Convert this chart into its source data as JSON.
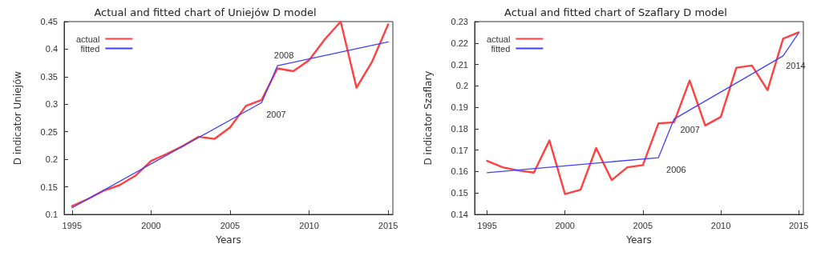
{
  "chart_data": [
    {
      "type": "line",
      "title": "Actual and fitted chart of Uniejów D model",
      "xlabel": "Years",
      "ylabel": "D indicator Uniejów",
      "xlim": [
        1994.5,
        2015.3
      ],
      "xticks": [
        1995,
        2000,
        2005,
        2010,
        2015
      ],
      "ylim": [
        0.1,
        0.45
      ],
      "yticks": [
        0.1,
        0.15,
        0.2,
        0.25,
        0.3,
        0.35,
        0.4,
        0.45
      ],
      "legend": "top left",
      "grid": false,
      "marker": "none",
      "line_style": "solid",
      "series": [
        {
          "name": "actual",
          "color": "#ff4040",
          "x": [
            1995,
            1996,
            1997,
            1998,
            1999,
            2000,
            2001,
            2002,
            2003,
            2004,
            2005,
            2006,
            2007,
            2008,
            2009,
            2010,
            2011,
            2012,
            2013,
            2014,
            2015
          ],
          "values": [
            0.115,
            0.128,
            0.143,
            0.153,
            0.17,
            0.197,
            0.21,
            0.224,
            0.241,
            0.237,
            0.258,
            0.297,
            0.308,
            0.365,
            0.36,
            0.38,
            0.418,
            0.45,
            0.33,
            0.378,
            0.445
          ]
        },
        {
          "name": "fitted",
          "color": "#4040ff",
          "x": [
            1995,
            2007,
            2008,
            2015
          ],
          "values": [
            0.112,
            0.303,
            0.37,
            0.413
          ]
        }
      ],
      "annotations": [
        {
          "text": "2007",
          "x": 2007,
          "y": 0.303
        },
        {
          "text": "2008",
          "x": 2008,
          "y": 0.37
        }
      ]
    },
    {
      "type": "line",
      "title": "Actual and fitted chart of Szaflary D model",
      "xlabel": "Years",
      "ylabel": "D indicator Szaflary",
      "xlim": [
        1994.2,
        2015.3
      ],
      "xticks": [
        1995,
        2000,
        2005,
        2010,
        2015
      ],
      "ylim": [
        0.14,
        0.23
      ],
      "yticks": [
        0.14,
        0.15,
        0.16,
        0.17,
        0.18,
        0.19,
        0.2,
        0.21,
        0.22,
        0.23
      ],
      "legend": "top left",
      "grid": false,
      "marker": "none",
      "line_style": "solid",
      "series": [
        {
          "name": "actual",
          "color": "#ff4040",
          "x": [
            1995,
            1996,
            1997,
            1998,
            1999,
            2000,
            2001,
            2002,
            2003,
            2004,
            2005,
            2006,
            2007,
            2008,
            2009,
            2010,
            2011,
            2012,
            2013,
            2014,
            2015
          ],
          "values": [
            0.165,
            0.162,
            0.1605,
            0.1595,
            0.1745,
            0.1495,
            0.1515,
            0.171,
            0.156,
            0.162,
            0.163,
            0.1825,
            0.183,
            0.2025,
            0.1815,
            0.1855,
            0.2085,
            0.2095,
            0.198,
            0.222,
            0.225
          ]
        },
        {
          "name": "fitted",
          "color": "#4040ff",
          "x": [
            1995,
            2006,
            2007,
            2014,
            2015
          ],
          "values": [
            0.1595,
            0.1665,
            0.1845,
            0.214,
            0.2247
          ]
        }
      ],
      "annotations": [
        {
          "text": "2006",
          "x": 2006,
          "y": 0.1665
        },
        {
          "text": "2007",
          "x": 2007,
          "y": 0.1845
        },
        {
          "text": "2014",
          "x": 2014,
          "y": 0.214
        }
      ]
    }
  ]
}
